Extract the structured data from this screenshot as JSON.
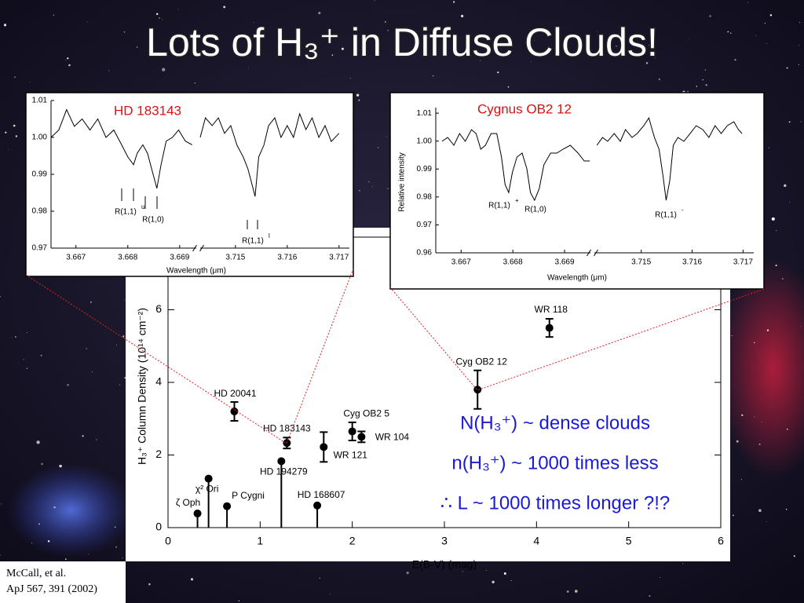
{
  "title": "Lots of H₃⁺ in Diffuse Clouds!",
  "notes": [
    "N(H₃⁺) ~ dense clouds",
    "n(H₃⁺) ~ 1000 times less",
    "∴ L ~ 1000 times longer ?!?"
  ],
  "citation": [
    "McCall, et al.",
    "ApJ 567, 391 (2002)"
  ],
  "chart_data": [
    {
      "type": "scatter",
      "xlabel": "E(B-V) (mag)",
      "ylabel": "H₃⁺ Column Density (10¹⁴ cm⁻²)",
      "xlim": [
        0,
        6
      ],
      "ylim": [
        0,
        8
      ],
      "xticks": [
        0,
        1,
        2,
        3,
        4,
        5,
        6
      ],
      "yticks": [
        0,
        2,
        4,
        6
      ],
      "color": "#000000",
      "labels": [
        "ζ Oph",
        "χ² Ori",
        "P Cygni",
        "HD 194279",
        "HD 168607",
        "HD 20041",
        "HD 183143",
        "WR 121",
        "Cyg OB2 5",
        "WR 104",
        "Cyg OB2 12",
        "WR 118"
      ],
      "x": [
        0.32,
        0.44,
        0.64,
        1.23,
        1.62,
        0.72,
        1.29,
        1.69,
        2.0,
        2.1,
        3.36,
        4.14
      ],
      "values": [
        0.39,
        1.35,
        0.59,
        1.83,
        0.61,
        3.2,
        2.33,
        2.22,
        2.65,
        2.5,
        3.8,
        5.5
      ],
      "errors": [
        null,
        null,
        null,
        null,
        null,
        0.26,
        0.15,
        0.41,
        0.25,
        0.15,
        0.53,
        0.25
      ],
      "upper_limit": [
        true,
        true,
        true,
        true,
        true,
        false,
        false,
        false,
        false,
        false,
        false,
        false
      ]
    },
    {
      "type": "line",
      "title": "HD 183143",
      "title_color": "#e01010",
      "xlabel": "Wavelength (μm)",
      "ylim": [
        0.97,
        1.01
      ],
      "yticks": [
        0.97,
        0.98,
        0.99,
        {
          "value": 1.0,
          "label": "1.00"
        },
        1.01
      ],
      "annotations": [
        {
          "text": "R(1,1)",
          "sup": "u"
        },
        {
          "text": "R(1,0)",
          "sup": ""
        },
        {
          "text": "R(1,1)",
          "sup": "l"
        }
      ],
      "segments": [
        {
          "xlim": [
            3.66652,
            3.66932
          ],
          "xticks": [
            3.667,
            3.668,
            3.669
          ],
          "x": [
            3.66652,
            3.66667,
            3.66682,
            3.66697,
            3.66712,
            3.66727,
            3.66742,
            3.66758,
            3.66773,
            3.66788,
            3.668,
            3.66811,
            3.66818,
            3.66829,
            3.66838,
            3.66848,
            3.66856,
            3.66864,
            3.66874,
            3.66886,
            3.66898,
            3.66911,
            3.66924
          ],
          "values": [
            1.0,
            1.002,
            1.0075,
            1.003,
            1.005,
            1.002,
            1.005,
            1.0,
            1.002,
            0.998,
            0.9947,
            0.9926,
            0.9957,
            0.998,
            0.9957,
            0.9904,
            0.9862,
            0.9926,
            0.999,
            1.0,
            1.002,
            0.999,
            0.998
          ]
        },
        {
          "xlim": [
            3.71432,
            3.7172
          ],
          "xticks": [
            3.715,
            3.716,
            3.717
          ],
          "x": [
            3.71432,
            3.71442,
            3.71455,
            3.71467,
            3.71479,
            3.71491,
            3.71503,
            3.71515,
            3.71524,
            3.7153,
            3.71538,
            3.71545,
            3.71555,
            3.71564,
            3.71576,
            3.71588,
            3.716,
            3.71612,
            3.71624,
            3.71636,
            3.71648,
            3.71661,
            3.71673,
            3.71685,
            3.717
          ],
          "values": [
            1.0,
            1.0053,
            1.0032,
            1.0053,
            1.0011,
            1.0032,
            0.9979,
            0.9947,
            0.9915,
            0.9883,
            0.984,
            0.9947,
            0.9979,
            1.0032,
            1.0053,
            1.0,
            1.0032,
            1.0,
            1.0064,
            1.0021,
            1.0053,
            1.0,
            1.0032,
            0.9989,
            1.0011
          ]
        }
      ]
    },
    {
      "type": "line",
      "title": "Cygnus OB2 12",
      "title_color": "#e01010",
      "xlabel": "Wavelength (μm)",
      "ylabel": "Relative intensity",
      "ylim": [
        0.96,
        1.012
      ],
      "yticks": [
        0.96,
        0.97,
        0.98,
        0.99,
        {
          "value": 1.0,
          "label": "1.00"
        },
        1.01
      ],
      "annotations": [
        {
          "text": "R(1,1)",
          "sup": "+"
        },
        {
          "text": "R(1,0)",
          "sup": ""
        },
        {
          "text": "R(1,1)",
          "sup": "-"
        }
      ],
      "segments": [
        {
          "xlim": [
            3.66651,
            3.6695
          ],
          "xticks": [
            3.667,
            3.668,
            3.669
          ],
          "x": [
            3.66663,
            3.66674,
            3.66686,
            3.66697,
            3.66708,
            3.6672,
            3.66729,
            3.66738,
            3.66747,
            3.66758,
            3.66769,
            3.66778,
            3.66785,
            3.66792,
            3.66799,
            3.66808,
            3.66818,
            3.66827,
            3.66834,
            3.66842,
            3.66851,
            3.6686,
            3.66873,
            3.66885,
            3.66897,
            3.66911,
            3.66926,
            3.66938,
            3.66949
          ],
          "values": [
            0.9999,
            1.0013,
            0.9985,
            1.0027,
            0.9999,
            1.0041,
            1.0027,
            0.9971,
            0.9985,
            1.0027,
            1.0027,
            0.9943,
            0.9844,
            0.9816,
            0.9887,
            0.9943,
            0.9957,
            0.9901,
            0.9816,
            0.9788,
            0.983,
            0.9915,
            0.9957,
            0.9957,
            0.9971,
            0.9985,
            0.9957,
            0.9929,
            0.9929
          ]
        },
        {
          "xlim": [
            3.71408,
            3.71721
          ],
          "xticks": [
            3.715,
            3.716,
            3.717
          ],
          "x": [
            3.71413,
            3.71424,
            3.71434,
            3.71447,
            3.71459,
            3.71469,
            3.71482,
            3.71492,
            3.71505,
            3.71515,
            3.71526,
            3.71535,
            3.71543,
            3.71549,
            3.71556,
            3.71563,
            3.71572,
            3.71584,
            3.71596,
            3.71608,
            3.71621,
            3.71633,
            3.71645,
            3.71657,
            3.71669,
            3.71682,
            3.71691,
            3.71698
          ],
          "values": [
            0.9985,
            1.0013,
            0.9999,
            1.0027,
            0.9999,
            1.0041,
            1.0013,
            1.0027,
            1.0055,
            1.0083,
            1.0013,
            0.9971,
            0.9872,
            0.9788,
            0.9858,
            0.9985,
            1.0013,
            0.9999,
            1.0027,
            1.0055,
            1.0041,
            1.0013,
            1.0055,
            1.0027,
            1.0055,
            1.0069,
            1.0041,
            1.0027
          ]
        }
      ]
    }
  ]
}
